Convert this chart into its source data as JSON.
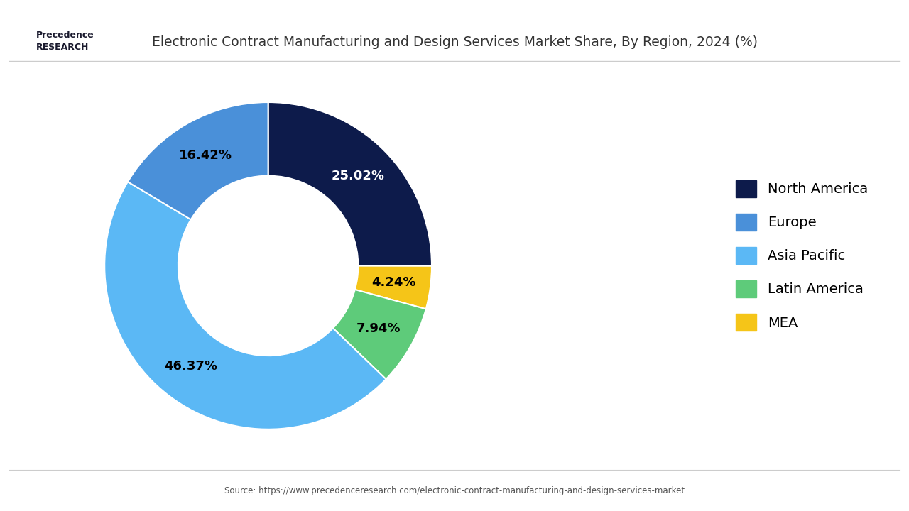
{
  "title": "Electronic Contract Manufacturing and Design Services Market Share, By Region, 2024 (%)",
  "source": "Source: https://www.precedenceresearch.com/electronic-contract-manufacturing-and-design-services-market",
  "regions": [
    "North America",
    "Europe",
    "Asia Pacific",
    "Latin America",
    "MEA"
  ],
  "values": [
    25.02,
    16.42,
    46.37,
    7.94,
    4.24
  ],
  "colors": [
    "#0d1b4b",
    "#4a90d9",
    "#5bb8f5",
    "#5ecb7a",
    "#f5c518"
  ],
  "background_color": "#ffffff",
  "donut_hole": 0.55,
  "startangle": 90,
  "label_fontsize": 13,
  "legend_fontsize": 14,
  "title_fontsize": 13.5
}
